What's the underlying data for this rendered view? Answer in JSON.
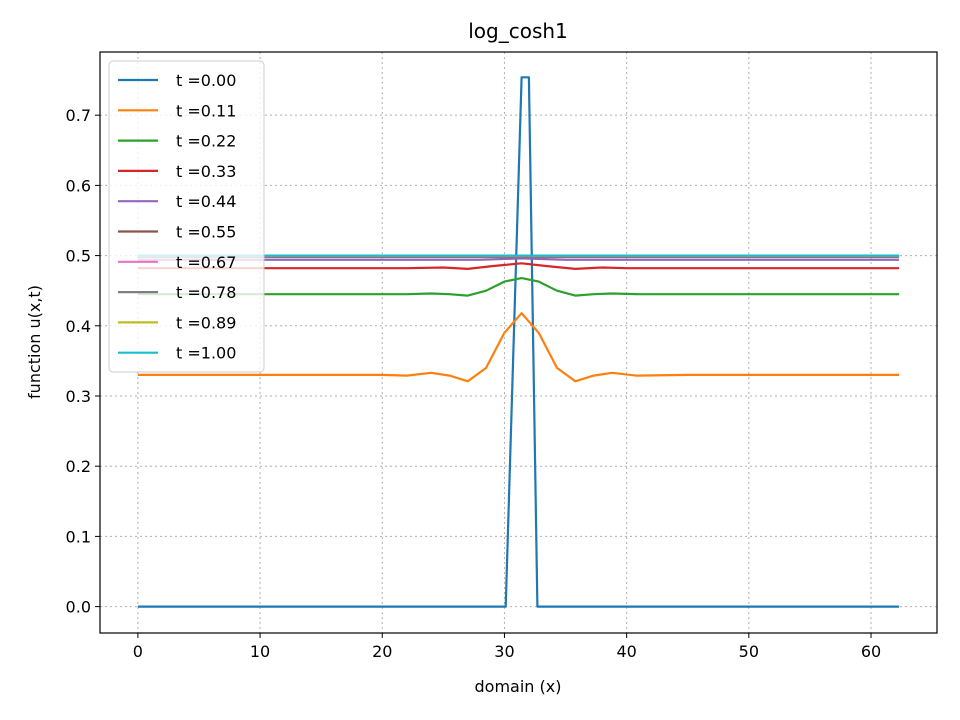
{
  "chart_data": {
    "type": "line",
    "title": "log_cosh1",
    "xlabel": "domain (x)",
    "ylabel": "function u(x,t)",
    "xlim": [
      -3.1,
      65.4
    ],
    "ylim": [
      -0.0376,
      0.79
    ],
    "xticks": [
      0,
      10,
      20,
      30,
      40,
      50,
      60
    ],
    "yticks": [
      0.0,
      0.1,
      0.2,
      0.3,
      0.4,
      0.5,
      0.6,
      0.7
    ],
    "grid": true,
    "legend_position": "upper-left",
    "series": [
      {
        "name": "t =0.00",
        "color": "#1f77b4",
        "points": [
          [
            0,
            0
          ],
          [
            30.1,
            0
          ],
          [
            31.4,
            0.754
          ],
          [
            32.0,
            0.754
          ],
          [
            32.7,
            0
          ],
          [
            62.3,
            0
          ]
        ]
      },
      {
        "name": "t =0.11",
        "color": "#ff7f0e",
        "points": [
          [
            0,
            0.33
          ],
          [
            20,
            0.33
          ],
          [
            22,
            0.329
          ],
          [
            24,
            0.333
          ],
          [
            25.5,
            0.329
          ],
          [
            27,
            0.321
          ],
          [
            28.5,
            0.34
          ],
          [
            30,
            0.39
          ],
          [
            31.4,
            0.418
          ],
          [
            32.8,
            0.39
          ],
          [
            34.3,
            0.34
          ],
          [
            35.8,
            0.321
          ],
          [
            37.3,
            0.329
          ],
          [
            38.8,
            0.333
          ],
          [
            40.8,
            0.329
          ],
          [
            45,
            0.33
          ],
          [
            62.3,
            0.33
          ]
        ]
      },
      {
        "name": "t =0.22",
        "color": "#2ca02c",
        "points": [
          [
            0,
            0.445
          ],
          [
            22,
            0.445
          ],
          [
            24,
            0.446
          ],
          [
            25.5,
            0.445
          ],
          [
            27,
            0.443
          ],
          [
            28.5,
            0.45
          ],
          [
            30,
            0.463
          ],
          [
            31.4,
            0.468
          ],
          [
            32.8,
            0.463
          ],
          [
            34.3,
            0.45
          ],
          [
            35.8,
            0.443
          ],
          [
            37.3,
            0.445
          ],
          [
            38.8,
            0.446
          ],
          [
            41,
            0.445
          ],
          [
            62.3,
            0.445
          ]
        ]
      },
      {
        "name": "t =0.33",
        "color": "#d62728",
        "points": [
          [
            0,
            0.482
          ],
          [
            22,
            0.482
          ],
          [
            25,
            0.483
          ],
          [
            27,
            0.481
          ],
          [
            29,
            0.485
          ],
          [
            31.4,
            0.489
          ],
          [
            33.5,
            0.485
          ],
          [
            35.8,
            0.481
          ],
          [
            38,
            0.483
          ],
          [
            40,
            0.482
          ],
          [
            62.3,
            0.482
          ]
        ]
      },
      {
        "name": "t =0.44",
        "color": "#9467bd",
        "points": [
          [
            0,
            0.494
          ],
          [
            28,
            0.494
          ],
          [
            31.4,
            0.496
          ],
          [
            35,
            0.494
          ],
          [
            62.3,
            0.494
          ]
        ]
      },
      {
        "name": "t =0.55",
        "color": "#8c564b",
        "points": [
          [
            0,
            0.498
          ],
          [
            62.3,
            0.498
          ]
        ]
      },
      {
        "name": "t =0.67",
        "color": "#e377c2",
        "points": [
          [
            0,
            0.499
          ],
          [
            62.3,
            0.499
          ]
        ]
      },
      {
        "name": "t =0.78",
        "color": "#7f7f7f",
        "points": [
          [
            0,
            0.4995
          ],
          [
            62.3,
            0.4995
          ]
        ]
      },
      {
        "name": "t =0.89",
        "color": "#bcbd22",
        "points": [
          [
            0,
            0.4998
          ],
          [
            62.3,
            0.4998
          ]
        ]
      },
      {
        "name": "t =1.00",
        "color": "#17becf",
        "points": [
          [
            0,
            0.5
          ],
          [
            62.3,
            0.5
          ]
        ]
      }
    ]
  }
}
